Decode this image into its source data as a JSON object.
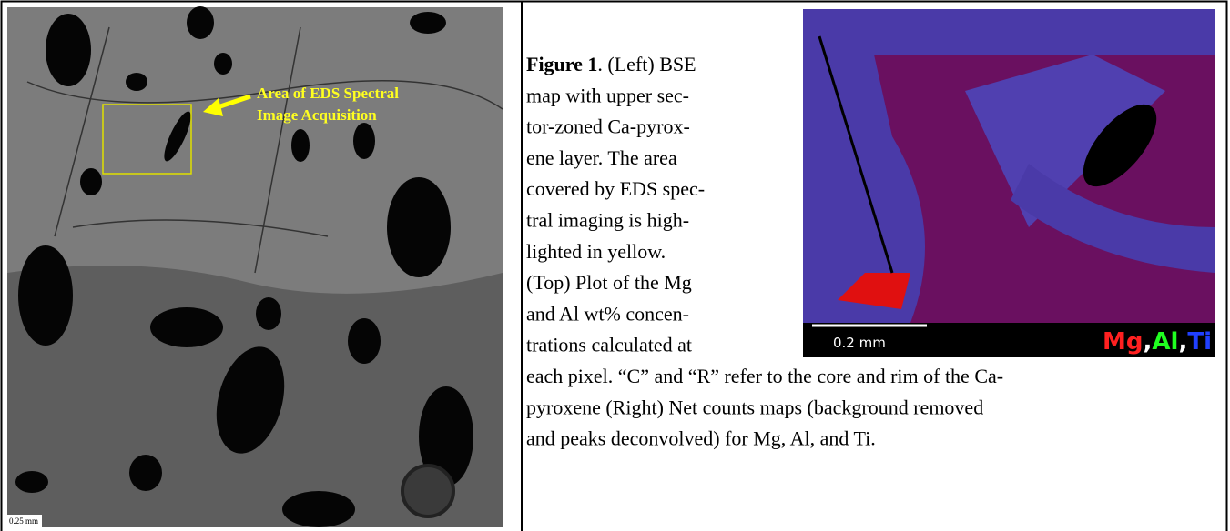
{
  "left_figure": {
    "annotation_lines": [
      "Area of EDS Spectral",
      "Image Acquisition"
    ],
    "scale_label": "0.25 mm"
  },
  "right_figure": {
    "scale_label": "0.2 mm",
    "legend": [
      {
        "text": "Mg",
        "color": "#ff2020"
      },
      {
        "text": ",",
        "color": "#ffffff"
      },
      {
        "text": "Al",
        "color": "#20ff20"
      },
      {
        "text": ",",
        "color": "#ffffff"
      },
      {
        "text": "Ti",
        "color": "#2040ff"
      }
    ]
  },
  "caption": {
    "label": "Figure 1",
    "lines": [
      ". (Left) BSE",
      "map with upper sec-",
      "tor-zoned Ca-pyrox-",
      "ene layer. The area",
      "covered by EDS spec-",
      "tral imaging is high-",
      "lighted in yellow.",
      "(Top) Plot of the Mg",
      "and Al wt% concen-",
      "trations calculated at",
      "each pixel. “C” and “R” refer to the core and rim of the Ca-",
      "pyroxene (Right) Net counts maps (background removed",
      "and peaks deconvolved) for Mg, Al, and Ti."
    ]
  }
}
